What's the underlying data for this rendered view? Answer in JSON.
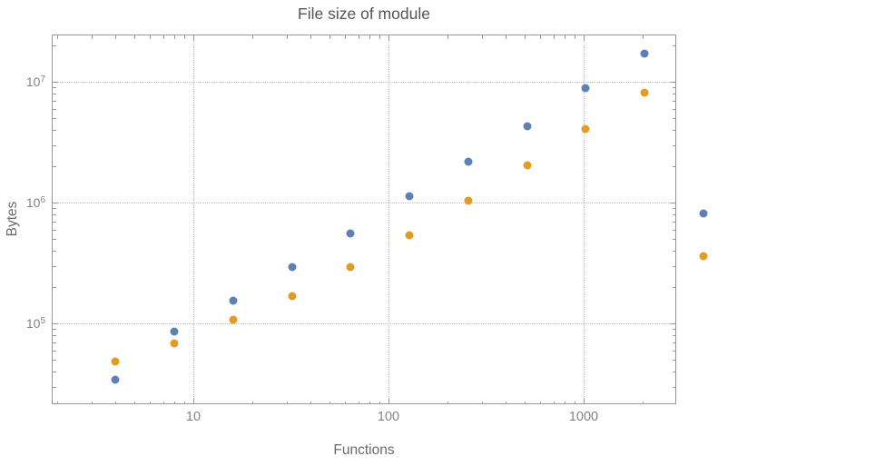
{
  "title": "File size of module",
  "chart_data": {
    "type": "scatter",
    "title": "File size of module",
    "xlabel": "Functions",
    "ylabel": "Bytes",
    "x_scale": "log",
    "y_scale": "log",
    "x_range_log10": [
      0.2744,
      3.4744
    ],
    "y_range_log10": [
      4.331,
      7.391
    ],
    "x_ticks": [
      10,
      100,
      1000
    ],
    "y_ticks": [
      100000,
      1000000,
      10000000
    ],
    "grid": "dotted gray lines at decade ticks",
    "legend_position": "none",
    "frame_color": "#989898",
    "grid_color": "#bdbdbd",
    "series": [
      {
        "name": "series-blue",
        "color": "#5E81B5",
        "points": [
          [
            4,
            34000
          ],
          [
            8,
            86000
          ],
          [
            16,
            155000
          ],
          [
            32,
            295000
          ],
          [
            64,
            560000
          ],
          [
            128,
            1130000
          ],
          [
            256,
            2200000
          ],
          [
            512,
            4300000
          ],
          [
            1024,
            8800000
          ],
          [
            2048,
            17000000
          ],
          [
            4096,
            820000
          ]
        ]
      },
      {
        "name": "series-orange",
        "color": "#E19C24",
        "points": [
          [
            4,
            48000
          ],
          [
            8,
            69000
          ],
          [
            16,
            107000
          ],
          [
            32,
            168000
          ],
          [
            64,
            295000
          ],
          [
            128,
            540000
          ],
          [
            256,
            1030000
          ],
          [
            512,
            2050000
          ],
          [
            1024,
            4050000
          ],
          [
            2048,
            8200000
          ],
          [
            4096,
            360000
          ]
        ]
      }
    ]
  }
}
